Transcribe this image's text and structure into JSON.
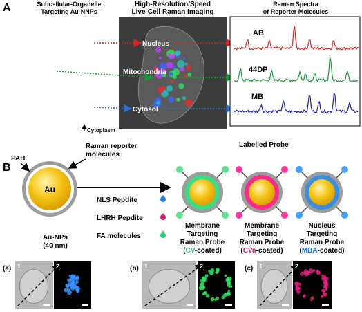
{
  "panel_a": {
    "label": "A",
    "particles_title": [
      "Subcellular-Organelle",
      "Targeting Au-NNPs"
    ],
    "imaging_title": [
      "High-Resolution/Speed",
      "Live-Cell Raman Imaging"
    ],
    "spectra_title": [
      "Raman Spectra",
      "of Reporter Molecules"
    ],
    "regions": [
      "Nucleus",
      "Mitochondria",
      "Cytosol"
    ],
    "cytoplasm": "Cytoplasm",
    "spectra": [
      "AB",
      "44DP",
      "MB"
    ]
  },
  "panel_b": {
    "label": "B",
    "shell": "PAH",
    "reporter": [
      "Raman reporter",
      "molecules"
    ],
    "core": "Au",
    "labelled_probe": "Labelled Probe",
    "ligands": [
      "NLS Pepdite",
      "LHRH Pepdite",
      "FA molecules"
    ],
    "nanoparticle": [
      "Au-NPs",
      "(40 nm)"
    ],
    "probes": [
      {
        "lines": [
          "Membrane",
          "Targeting",
          "Raman Probe"
        ],
        "coating": [
          "(",
          "CV",
          "-coated)"
        ]
      },
      {
        "lines": [
          "Membrane",
          "Targeting",
          "Raman Probe"
        ],
        "coating": [
          "(",
          "CVa",
          "-coated)"
        ]
      },
      {
        "lines": [
          "Nucleus",
          "Targeting",
          "Raman Probe"
        ],
        "coating": [
          "(",
          "MBA",
          "-coated)"
        ]
      }
    ],
    "images": [
      {
        "label": "(a)",
        "left": "1",
        "right": "2"
      },
      {
        "label": "(b)",
        "left": "1",
        "right": "2"
      },
      {
        "label": "(c)",
        "left": "1",
        "right": "2"
      }
    ]
  }
}
